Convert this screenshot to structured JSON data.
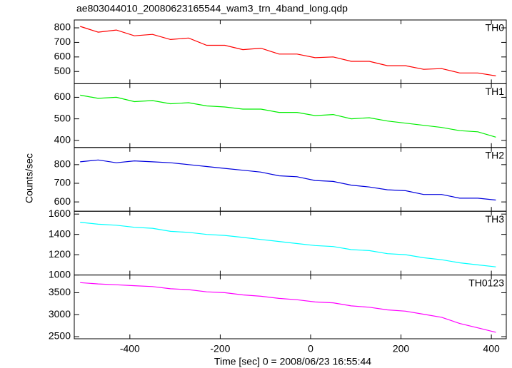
{
  "title": "ae803044010_20080623165544_wam3_trn_4band_long.qdp",
  "xlabel": "Time [sec] 0 = 2008/06/23 16:55:44",
  "ylabel": "Counts/sec",
  "chart_data": [
    {
      "type": "line",
      "x": [
        -510,
        -470,
        -430,
        -390,
        -350,
        -310,
        -270,
        -230,
        -190,
        -150,
        -110,
        -70,
        -30,
        10,
        50,
        90,
        130,
        170,
        210,
        250,
        290,
        330,
        370,
        410
      ],
      "xlim": [
        -523,
        433
      ],
      "xticks": [
        -400,
        -200,
        0,
        200,
        400
      ],
      "ylim": [
        416,
        854
      ],
      "yticks": [
        500,
        600,
        700,
        800
      ],
      "series": [
        {
          "name": "TH0",
          "color": "#ff0000",
          "values": [
            810,
            770,
            785,
            745,
            755,
            720,
            730,
            680,
            680,
            650,
            660,
            620,
            620,
            595,
            600,
            570,
            570,
            540,
            540,
            515,
            520,
            490,
            490,
            470
          ]
        }
      ]
    },
    {
      "type": "line",
      "x": [
        -510,
        -470,
        -430,
        -390,
        -350,
        -310,
        -270,
        -230,
        -190,
        -150,
        -110,
        -70,
        -30,
        10,
        50,
        90,
        130,
        170,
        210,
        250,
        290,
        330,
        370,
        410
      ],
      "xlim": [
        -523,
        433
      ],
      "xticks": [
        -400,
        -200,
        0,
        200,
        400
      ],
      "ylim": [
        367,
        663
      ],
      "yticks": [
        400,
        500,
        600
      ],
      "series": [
        {
          "name": "TH1",
          "color": "#00ee00",
          "values": [
            610,
            595,
            600,
            580,
            585,
            570,
            575,
            560,
            555,
            545,
            545,
            530,
            530,
            515,
            520,
            500,
            505,
            490,
            480,
            470,
            460,
            445,
            440,
            415
          ]
        }
      ]
    },
    {
      "type": "line",
      "x": [
        -510,
        -470,
        -430,
        -390,
        -350,
        -310,
        -270,
        -230,
        -190,
        -150,
        -110,
        -70,
        -30,
        10,
        50,
        90,
        130,
        170,
        210,
        250,
        290,
        330,
        370,
        410
      ],
      "xlim": [
        -523,
        433
      ],
      "xticks": [
        -400,
        -200,
        0,
        200,
        400
      ],
      "ylim": [
        550,
        892
      ],
      "yticks": [
        600,
        700,
        800
      ],
      "series": [
        {
          "name": "TH2",
          "color": "#0000dd",
          "values": [
            815,
            825,
            810,
            820,
            815,
            810,
            800,
            790,
            780,
            770,
            760,
            740,
            735,
            715,
            710,
            690,
            680,
            665,
            660,
            640,
            640,
            620,
            620,
            610
          ]
        }
      ]
    },
    {
      "type": "line",
      "x": [
        -510,
        -470,
        -430,
        -390,
        -350,
        -310,
        -270,
        -230,
        -190,
        -150,
        -110,
        -70,
        -30,
        10,
        50,
        90,
        130,
        170,
        210,
        250,
        290,
        330,
        370,
        410
      ],
      "xlim": [
        -523,
        433
      ],
      "xticks": [
        -400,
        -200,
        0,
        200,
        400
      ],
      "ylim": [
        1000,
        1628
      ],
      "yticks": [
        1000,
        1200,
        1400,
        1600
      ],
      "series": [
        {
          "name": "TH3",
          "color": "#00ffff",
          "values": [
            1520,
            1500,
            1490,
            1470,
            1460,
            1430,
            1420,
            1400,
            1390,
            1370,
            1350,
            1330,
            1310,
            1290,
            1280,
            1250,
            1240,
            1210,
            1200,
            1170,
            1150,
            1120,
            1100,
            1080
          ]
        }
      ]
    },
    {
      "type": "line",
      "x": [
        -510,
        -470,
        -430,
        -390,
        -350,
        -310,
        -270,
        -230,
        -190,
        -150,
        -110,
        -70,
        -30,
        10,
        50,
        90,
        130,
        170,
        210,
        250,
        290,
        330,
        370,
        410
      ],
      "xlim": [
        -523,
        433
      ],
      "xticks": [
        -400,
        -200,
        0,
        200,
        400
      ],
      "ylim": [
        2452,
        3903
      ],
      "yticks": [
        2500,
        3000,
        3500
      ],
      "series": [
        {
          "name": "TH0123",
          "color": "#ff00ff",
          "values": [
            3730,
            3700,
            3680,
            3660,
            3640,
            3590,
            3570,
            3520,
            3500,
            3450,
            3420,
            3370,
            3340,
            3290,
            3270,
            3200,
            3170,
            3110,
            3080,
            3010,
            2940,
            2800,
            2700,
            2600
          ]
        }
      ]
    }
  ]
}
